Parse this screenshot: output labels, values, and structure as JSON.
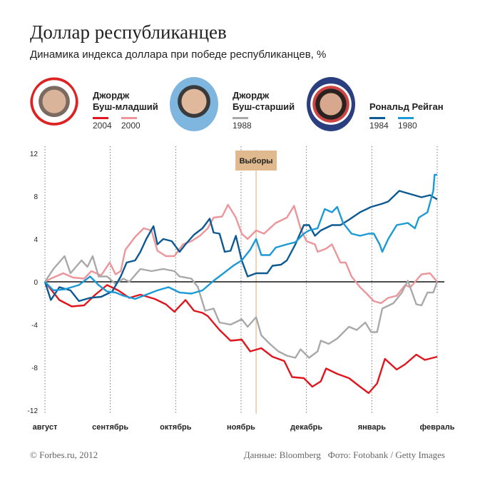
{
  "title": "Доллар республиканцев",
  "subtitle": "Динамика индекса доллара при победе республиканцев, %",
  "people": [
    {
      "name1": "Джордж",
      "name2": "Буш-младший",
      "legend": [
        {
          "label": "2004",
          "color": "#e0161e"
        },
        {
          "label": "2000",
          "color": "#ec959a"
        }
      ]
    },
    {
      "name1": "Джордж",
      "name2": "Буш-старший",
      "legend": [
        {
          "label": "1988",
          "color": "#a9a9a9"
        }
      ]
    },
    {
      "name1": "",
      "name2": "Рональд Рейган",
      "legend": [
        {
          "label": "1984",
          "color": "#0d5a93"
        },
        {
          "label": "1980",
          "color": "#1b9ad6"
        }
      ]
    }
  ],
  "footer": {
    "left": "© Forbes.ru, 2012",
    "right": "Данные: Bloomberg   Фото: Fotobank / Getty Images"
  },
  "chart_data": {
    "type": "line",
    "categories": [
      "август",
      "сентябрь",
      "октябрь",
      "ноябрь",
      "декабрь",
      "январь",
      "февраль"
    ],
    "ylim": [
      -12,
      12
    ],
    "yticks": [
      12,
      8,
      4,
      0,
      -4,
      -8,
      -12
    ],
    "grid": "vertical dotted at months",
    "annotation": {
      "label": "Выборы",
      "x": 3.23,
      "color": "#e0b98f"
    },
    "series": [
      {
        "name": "2004",
        "color": "#e0161e",
        "points": [
          [
            0,
            0
          ],
          [
            0.22,
            -1.7
          ],
          [
            0.41,
            -2.3
          ],
          [
            0.6,
            -2.2
          ],
          [
            0.77,
            -1.2
          ],
          [
            0.95,
            -0.3
          ],
          [
            1.12,
            -0.8
          ],
          [
            1.29,
            -1.5
          ],
          [
            1.46,
            -1.2
          ],
          [
            1.68,
            -1.6
          ],
          [
            1.85,
            -2.1
          ],
          [
            1.98,
            -2.8
          ],
          [
            2.15,
            -1.7
          ],
          [
            2.28,
            -2.7
          ],
          [
            2.41,
            -2.9
          ],
          [
            2.49,
            -3.2
          ],
          [
            2.67,
            -4.5
          ],
          [
            2.84,
            -5.5
          ],
          [
            3.01,
            -5.4
          ],
          [
            3.14,
            -6.5
          ],
          [
            3.31,
            -6.2
          ],
          [
            3.48,
            -7.0
          ],
          [
            3.66,
            -7.4
          ],
          [
            3.78,
            -8.9
          ],
          [
            3.96,
            -9.0
          ],
          [
            4.09,
            -9.8
          ],
          [
            4.22,
            -9.3
          ],
          [
            4.3,
            -8.1
          ],
          [
            4.47,
            -8.6
          ],
          [
            4.65,
            -9.0
          ],
          [
            4.82,
            -9.8
          ],
          [
            4.95,
            -10.4
          ],
          [
            5.08,
            -9.5
          ],
          [
            5.2,
            -7.2
          ],
          [
            5.38,
            -8.2
          ],
          [
            5.51,
            -7.7
          ],
          [
            5.68,
            -6.8
          ],
          [
            5.81,
            -7.3
          ],
          [
            6,
            -7.0
          ]
        ]
      },
      {
        "name": "2000",
        "color": "#ec959a",
        "points": [
          [
            0,
            0
          ],
          [
            0.09,
            0.3
          ],
          [
            0.28,
            0.8
          ],
          [
            0.43,
            0.4
          ],
          [
            0.6,
            0.3
          ],
          [
            0.71,
            1.0
          ],
          [
            0.86,
            0.6
          ],
          [
            0.99,
            1.8
          ],
          [
            1.08,
            0.7
          ],
          [
            1.16,
            1.0
          ],
          [
            1.23,
            3.0
          ],
          [
            1.38,
            4.2
          ],
          [
            1.51,
            5.0
          ],
          [
            1.63,
            4.8
          ],
          [
            1.72,
            2.9
          ],
          [
            1.85,
            2.4
          ],
          [
            1.98,
            2.4
          ],
          [
            2.11,
            3.5
          ],
          [
            2.24,
            3.8
          ],
          [
            2.37,
            4.3
          ],
          [
            2.49,
            5.0
          ],
          [
            2.58,
            6.0
          ],
          [
            2.71,
            6.1
          ],
          [
            2.8,
            7.2
          ],
          [
            2.92,
            6.0
          ],
          [
            3.01,
            4.5
          ],
          [
            3.1,
            4.0
          ],
          [
            3.23,
            4.8
          ],
          [
            3.35,
            4.5
          ],
          [
            3.53,
            5.5
          ],
          [
            3.7,
            6.0
          ],
          [
            3.81,
            7.1
          ],
          [
            3.91,
            5.0
          ],
          [
            4.0,
            3.8
          ],
          [
            4.13,
            3.5
          ],
          [
            4.17,
            2.8
          ],
          [
            4.3,
            3.1
          ],
          [
            4.39,
            3.5
          ],
          [
            4.52,
            1.8
          ],
          [
            4.6,
            1.8
          ],
          [
            4.69,
            0.5
          ],
          [
            4.82,
            -0.5
          ],
          [
            4.92,
            -1.1
          ],
          [
            5.03,
            -1.8
          ],
          [
            5.14,
            -2.0
          ],
          [
            5.25,
            -1.5
          ],
          [
            5.38,
            -1.3
          ],
          [
            5.51,
            -0.3
          ],
          [
            5.59,
            -0.5
          ],
          [
            5.76,
            0.7
          ],
          [
            5.89,
            0.8
          ],
          [
            6,
            0
          ]
        ]
      },
      {
        "name": "1988",
        "color": "#a9a9a9",
        "points": [
          [
            0,
            0
          ],
          [
            0.13,
            1.2
          ],
          [
            0.3,
            2.4
          ],
          [
            0.39,
            0.8
          ],
          [
            0.56,
            2.0
          ],
          [
            0.65,
            1.4
          ],
          [
            0.73,
            2.4
          ],
          [
            0.82,
            0.5
          ],
          [
            0.95,
            0.5
          ],
          [
            1.08,
            -0.2
          ],
          [
            1.2,
            0.3
          ],
          [
            1.29,
            0
          ],
          [
            1.46,
            1.2
          ],
          [
            1.63,
            1.0
          ],
          [
            1.81,
            1.2
          ],
          [
            1.98,
            1.0
          ],
          [
            2.06,
            0.5
          ],
          [
            2.24,
            0.3
          ],
          [
            2.34,
            -0.5
          ],
          [
            2.45,
            -2.7
          ],
          [
            2.58,
            -2.5
          ],
          [
            2.67,
            -3.8
          ],
          [
            2.84,
            -4.0
          ],
          [
            3.01,
            -3.5
          ],
          [
            3.1,
            -4.2
          ],
          [
            3.23,
            -3.3
          ],
          [
            3.31,
            -5.0
          ],
          [
            3.44,
            -5.8
          ],
          [
            3.57,
            -6.5
          ],
          [
            3.7,
            -6.9
          ],
          [
            3.83,
            -7.1
          ],
          [
            3.91,
            -6.3
          ],
          [
            4.04,
            -7.1
          ],
          [
            4.17,
            -6.5
          ],
          [
            4.22,
            -5.5
          ],
          [
            4.34,
            -5.8
          ],
          [
            4.47,
            -5.3
          ],
          [
            4.65,
            -4.2
          ],
          [
            4.77,
            -4.5
          ],
          [
            4.9,
            -3.8
          ],
          [
            4.99,
            -4.7
          ],
          [
            5.08,
            -4.7
          ],
          [
            5.16,
            -2.5
          ],
          [
            5.33,
            -2.0
          ],
          [
            5.46,
            -1.0
          ],
          [
            5.55,
            0.1
          ],
          [
            5.68,
            -2.1
          ],
          [
            5.76,
            -2.2
          ],
          [
            5.85,
            -1.0
          ],
          [
            5.94,
            -1.0
          ],
          [
            6,
            0
          ]
        ]
      },
      {
        "name": "1984",
        "color": "#0d5a93",
        "points": [
          [
            0,
            0
          ],
          [
            0.09,
            -1.7
          ],
          [
            0.22,
            -0.5
          ],
          [
            0.39,
            -0.8
          ],
          [
            0.52,
            -1.8
          ],
          [
            0.69,
            -1.5
          ],
          [
            0.86,
            -1.4
          ],
          [
            1.03,
            -0.9
          ],
          [
            1.16,
            0.5
          ],
          [
            1.25,
            1.8
          ],
          [
            1.38,
            2.0
          ],
          [
            1.46,
            2.8
          ],
          [
            1.55,
            4.0
          ],
          [
            1.66,
            5.2
          ],
          [
            1.72,
            3.5
          ],
          [
            1.81,
            4.0
          ],
          [
            1.94,
            3.8
          ],
          [
            2.06,
            2.8
          ],
          [
            2.15,
            3.5
          ],
          [
            2.28,
            4.4
          ],
          [
            2.41,
            5.0
          ],
          [
            2.52,
            5.9
          ],
          [
            2.58,
            4.6
          ],
          [
            2.67,
            4.5
          ],
          [
            2.75,
            2.8
          ],
          [
            2.84,
            2.9
          ],
          [
            2.92,
            4.3
          ],
          [
            3.01,
            2.0
          ],
          [
            3.1,
            0.5
          ],
          [
            3.23,
            0.8
          ],
          [
            3.4,
            0.8
          ],
          [
            3.48,
            1.5
          ],
          [
            3.61,
            1.6
          ],
          [
            3.7,
            2.0
          ],
          [
            3.83,
            3.5
          ],
          [
            3.96,
            5.3
          ],
          [
            4.04,
            5.3
          ],
          [
            4.13,
            4.3
          ],
          [
            4.22,
            4.8
          ],
          [
            4.39,
            5.3
          ],
          [
            4.52,
            5.3
          ],
          [
            4.65,
            5.8
          ],
          [
            4.82,
            6.5
          ],
          [
            4.99,
            7.0
          ],
          [
            5.16,
            7.3
          ],
          [
            5.25,
            7.5
          ],
          [
            5.42,
            8.5
          ],
          [
            5.59,
            8.2
          ],
          [
            5.76,
            7.9
          ],
          [
            5.89,
            8.1
          ],
          [
            6,
            7.7
          ]
        ]
      },
      {
        "name": "1980",
        "color": "#1b9ad6",
        "points": [
          [
            0,
            0
          ],
          [
            0.13,
            -0.8
          ],
          [
            0.3,
            -0.7
          ],
          [
            0.52,
            -0.3
          ],
          [
            0.69,
            0.5
          ],
          [
            0.82,
            -0.3
          ],
          [
            0.95,
            -0.9
          ],
          [
            1.08,
            -1.0
          ],
          [
            1.2,
            -1.3
          ],
          [
            1.38,
            -1.6
          ],
          [
            1.55,
            -1.2
          ],
          [
            1.72,
            -0.8
          ],
          [
            1.89,
            -0.5
          ],
          [
            2.06,
            -1.0
          ],
          [
            2.24,
            -1.1
          ],
          [
            2.41,
            -0.8
          ],
          [
            2.58,
            0.1
          ],
          [
            2.71,
            0.7
          ],
          [
            2.88,
            1.5
          ],
          [
            3.01,
            2.0
          ],
          [
            3.14,
            3.0
          ],
          [
            3.23,
            4.0
          ],
          [
            3.31,
            2.5
          ],
          [
            3.44,
            2.5
          ],
          [
            3.53,
            3.2
          ],
          [
            3.7,
            3.5
          ],
          [
            3.83,
            3.7
          ],
          [
            3.96,
            4.5
          ],
          [
            4.04,
            4.8
          ],
          [
            4.17,
            5.0
          ],
          [
            4.28,
            6.8
          ],
          [
            4.39,
            6.5
          ],
          [
            4.47,
            7.0
          ],
          [
            4.56,
            5.5
          ],
          [
            4.69,
            4.5
          ],
          [
            4.82,
            4.3
          ],
          [
            4.95,
            4.5
          ],
          [
            5.03,
            4.5
          ],
          [
            5.12,
            3.5
          ],
          [
            5.16,
            2.8
          ],
          [
            5.25,
            4.0
          ],
          [
            5.38,
            5.3
          ],
          [
            5.55,
            5.5
          ],
          [
            5.66,
            5.0
          ],
          [
            5.72,
            6.0
          ],
          [
            5.85,
            6.5
          ],
          [
            5.94,
            8.5
          ],
          [
            5.96,
            10.0
          ],
          [
            6,
            10.0
          ]
        ]
      }
    ]
  }
}
